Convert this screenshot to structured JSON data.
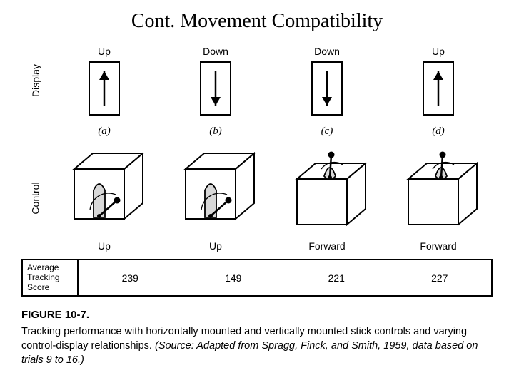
{
  "title": "Cont. Movement Compatibility",
  "axis_display": "Display",
  "axis_control": "Control",
  "panels": [
    {
      "letter": "(a)",
      "display_label": "Up",
      "display_arrow": "up",
      "control_type": "side",
      "control_label": "Up",
      "score": "239"
    },
    {
      "letter": "(b)",
      "display_label": "Down",
      "display_arrow": "down",
      "control_type": "side",
      "control_label": "Up",
      "score": "149"
    },
    {
      "letter": "(c)",
      "display_label": "Down",
      "display_arrow": "down",
      "control_type": "top",
      "control_label": "Forward",
      "score": "221"
    },
    {
      "letter": "(d)",
      "display_label": "Up",
      "display_arrow": "up",
      "control_type": "top",
      "control_label": "Forward",
      "score": "227"
    }
  ],
  "score_header": "Average\nTracking\nScore",
  "figure_label": "FIGURE 10-7.",
  "caption_main": "Tracking performance with horizontally mounted and vertically mounted stick controls and varying control-display relationships. ",
  "caption_source": "(Source: Adapted from Spragg, Finck, and Smith, 1959, data based on trials 9 to 16.)",
  "colors": {
    "stroke": "#000000",
    "fill_lever": "#d8d8d8",
    "bg": "#ffffff"
  }
}
